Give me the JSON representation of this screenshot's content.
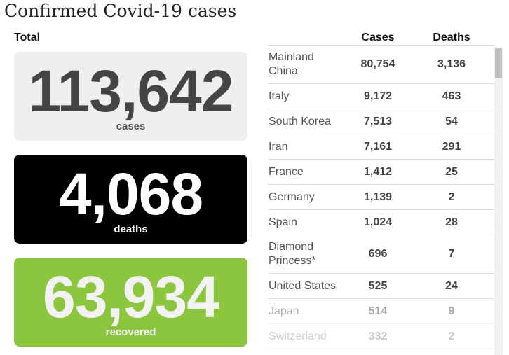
{
  "title": "Confirmed Covid-19 cases",
  "total_label": "Total",
  "cards": {
    "cases": {
      "value": "113,642",
      "label": "cases",
      "color": "#efefef"
    },
    "deaths": {
      "value": "4,068",
      "label": "deaths",
      "color": "#000000"
    },
    "recovered": {
      "value": "63,934",
      "label": "recovered",
      "color": "#8cc63f"
    }
  },
  "table": {
    "headers": {
      "cases": "Cases",
      "deaths": "Deaths"
    },
    "rows": [
      {
        "country": "Mainland China",
        "cases": "80,754",
        "deaths": "3,136"
      },
      {
        "country": "Italy",
        "cases": "9,172",
        "deaths": "463"
      },
      {
        "country": "South Korea",
        "cases": "7,513",
        "deaths": "54"
      },
      {
        "country": "Iran",
        "cases": "7,161",
        "deaths": "291"
      },
      {
        "country": "France",
        "cases": "1,412",
        "deaths": "25"
      },
      {
        "country": "Germany",
        "cases": "1,139",
        "deaths": "2"
      },
      {
        "country": "Spain",
        "cases": "1,024",
        "deaths": "28"
      },
      {
        "country": "Diamond Princess*",
        "cases": "696",
        "deaths": "7"
      },
      {
        "country": "United States",
        "cases": "525",
        "deaths": "24"
      },
      {
        "country": "Japan",
        "cases": "514",
        "deaths": "9"
      },
      {
        "country": "Switzerland",
        "cases": "332",
        "deaths": "2"
      }
    ]
  }
}
